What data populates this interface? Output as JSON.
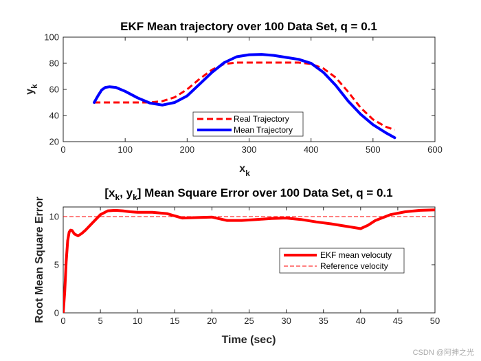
{
  "chart_data": [
    {
      "type": "line",
      "title": "EKF Mean trajectory over 100 Data Set, q = 0.1",
      "xlabel": "x",
      "xlabel_sub": "k",
      "ylabel": "y",
      "ylabel_sub": "k",
      "xlim": [
        0,
        600
      ],
      "ylim": [
        20,
        100
      ],
      "xticks": [
        0,
        100,
        200,
        300,
        400,
        500,
        600
      ],
      "yticks": [
        20,
        40,
        60,
        80,
        100
      ],
      "legend": "bottom-center",
      "series": [
        {
          "name": "Real Trajectory",
          "color": "#ff0000",
          "style": "dashed",
          "x": [
            50,
            100,
            140,
            160,
            180,
            200,
            220,
            240,
            260,
            280,
            300,
            340,
            380,
            400,
            420,
            440,
            460,
            480,
            500,
            520,
            535
          ],
          "y": [
            50,
            50,
            50,
            51,
            54,
            60,
            68,
            75,
            79.5,
            80.5,
            80.5,
            80.5,
            80.5,
            79.5,
            76,
            69,
            58,
            46,
            37,
            31.5,
            29
          ]
        },
        {
          "name": "Mean Trajectory",
          "color": "#0000ff",
          "style": "solid",
          "x": [
            50,
            56,
            62,
            68,
            75,
            85,
            100,
            120,
            140,
            160,
            180,
            200,
            220,
            240,
            260,
            280,
            300,
            320,
            340,
            360,
            380,
            400,
            420,
            440,
            460,
            480,
            500,
            520,
            535
          ],
          "y": [
            50,
            55,
            59.5,
            61.5,
            62,
            61.5,
            58.5,
            53.5,
            49.5,
            48,
            50,
            55,
            64,
            73,
            80.5,
            85,
            86.5,
            86.8,
            86,
            84.5,
            83,
            80,
            73,
            63,
            51,
            41,
            33,
            27,
            23
          ]
        }
      ]
    },
    {
      "type": "line",
      "title_parts": [
        "[x",
        "k",
        ", y",
        "k",
        "] Mean Square Error over 100 Data Set, q = 0.1"
      ],
      "xlabel": "Time (sec)",
      "ylabel": "Root Mean Square Error",
      "xlim": [
        0,
        50
      ],
      "ylim": [
        0,
        11
      ],
      "xticks": [
        0,
        5,
        10,
        15,
        20,
        25,
        30,
        35,
        40,
        45,
        50
      ],
      "yticks": [
        0,
        5,
        10
      ],
      "legend": "right",
      "series": [
        {
          "name": "EKF mean velocuty",
          "color": "#ff0000",
          "style": "solid",
          "x": [
            0,
            0.2,
            0.4,
            0.6,
            0.8,
            1.0,
            1.2,
            1.5,
            2.0,
            2.5,
            3.0,
            4.0,
            5.0,
            6.0,
            7.0,
            8.0,
            9.0,
            10.0,
            12.0,
            14.0,
            16.0,
            18.0,
            20.0,
            22.0,
            24.0,
            26.0,
            28.0,
            30.0,
            32.0,
            34.0,
            36.0,
            38.0,
            40.0,
            41.0,
            42.0,
            44.0,
            46.0,
            48.0,
            50.0
          ],
          "y": [
            0,
            2.2,
            5.3,
            7.5,
            8.4,
            8.6,
            8.55,
            8.2,
            8.0,
            8.25,
            8.6,
            9.4,
            10.2,
            10.6,
            10.65,
            10.6,
            10.5,
            10.45,
            10.45,
            10.3,
            9.85,
            9.9,
            9.95,
            9.6,
            9.6,
            9.7,
            9.8,
            9.85,
            9.7,
            9.45,
            9.25,
            9.0,
            8.75,
            9.1,
            9.6,
            10.2,
            10.5,
            10.65,
            10.7
          ]
        },
        {
          "name": "Reference velocity",
          "color": "#ff0000",
          "style": "dashed",
          "x": [
            0,
            50
          ],
          "y": [
            10,
            10
          ]
        }
      ]
    }
  ],
  "watermark": "CSDN @阿抻之光"
}
